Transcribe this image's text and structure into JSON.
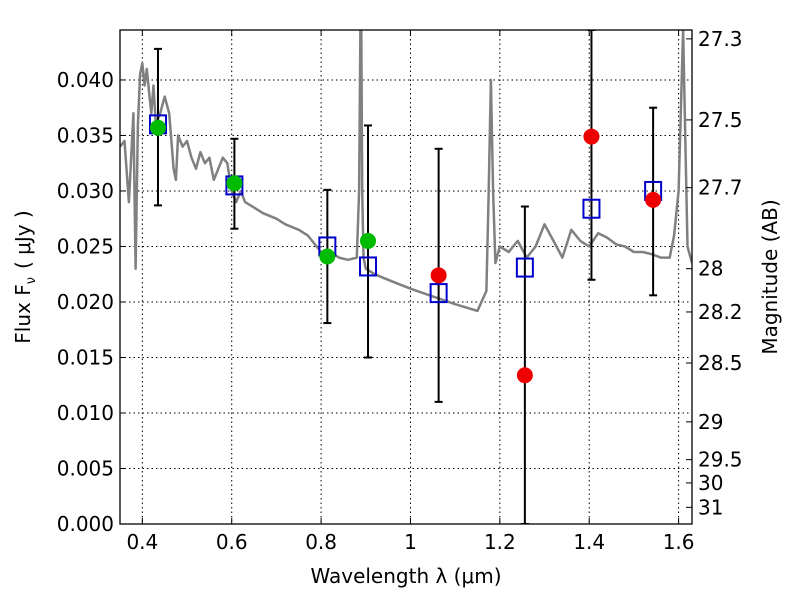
{
  "chart_data": {
    "type": "scatter",
    "xlabel": "Wavelength  λ (μm)",
    "ylabel": "Flux  F",
    "ylabel_sub": "ν",
    "ylabel_unit": "( μJy )",
    "y2label": "Magnitude (AB)",
    "xlim": [
      0.35,
      1.63
    ],
    "ylim": [
      0.0,
      0.0445
    ],
    "grid": true,
    "x_ticks": [
      0.4,
      0.6,
      0.8,
      1.0,
      1.2,
      1.4,
      1.6
    ],
    "x_tick_labels": [
      "0.4",
      "0.6",
      "0.8",
      "1",
      "1.2",
      "1.4",
      "1.6"
    ],
    "y_ticks": [
      0.0,
      0.005,
      0.01,
      0.015,
      0.02,
      0.025,
      0.03,
      0.035,
      0.04
    ],
    "y_tick_labels": [
      "0.000",
      "0.005",
      "0.010",
      "0.015",
      "0.020",
      "0.025",
      "0.030",
      "0.035",
      "0.040"
    ],
    "y2_ticks": [
      {
        "label": "27.3",
        "flux": 0.0437
      },
      {
        "label": "27.5",
        "flux": 0.0364
      },
      {
        "label": "27.7",
        "flux": 0.0303
      },
      {
        "label": "28",
        "flux": 0.023
      },
      {
        "label": "28.2",
        "flux": 0.0191
      },
      {
        "label": "28.5",
        "flux": 0.0145
      },
      {
        "label": "29",
        "flux": 0.0092
      },
      {
        "label": "29.5",
        "flux": 0.0058
      },
      {
        "label": "30",
        "flux": 0.0037
      },
      {
        "label": "31",
        "flux": 0.0015
      }
    ],
    "series": [
      {
        "kind": "model_spectrum",
        "color": "#808080",
        "x": [
          0.35,
          0.36,
          0.37,
          0.38,
          0.385,
          0.39,
          0.395,
          0.4,
          0.405,
          0.41,
          0.415,
          0.42,
          0.425,
          0.43,
          0.44,
          0.45,
          0.46,
          0.47,
          0.475,
          0.48,
          0.49,
          0.5,
          0.51,
          0.52,
          0.53,
          0.54,
          0.55,
          0.56,
          0.57,
          0.58,
          0.59,
          0.6,
          0.61,
          0.62,
          0.63,
          0.65,
          0.67,
          0.7,
          0.72,
          0.75,
          0.77,
          0.8,
          0.82,
          0.84,
          0.86,
          0.88,
          0.885,
          0.888,
          0.89,
          0.892,
          0.895,
          0.9,
          0.92,
          0.95,
          1.0,
          1.05,
          1.1,
          1.15,
          1.17,
          1.175,
          1.18,
          1.185,
          1.19,
          1.2,
          1.22,
          1.24,
          1.26,
          1.28,
          1.3,
          1.32,
          1.34,
          1.36,
          1.38,
          1.4,
          1.42,
          1.44,
          1.46,
          1.48,
          1.5,
          1.52,
          1.54,
          1.56,
          1.58,
          1.59,
          1.6,
          1.61,
          1.62,
          1.63
        ],
        "y": [
          0.034,
          0.0345,
          0.029,
          0.037,
          0.023,
          0.036,
          0.0405,
          0.0415,
          0.0395,
          0.041,
          0.039,
          0.037,
          0.0395,
          0.036,
          0.037,
          0.0385,
          0.037,
          0.032,
          0.031,
          0.035,
          0.034,
          0.0345,
          0.033,
          0.032,
          0.0335,
          0.0325,
          0.033,
          0.031,
          0.032,
          0.033,
          0.0325,
          0.03,
          0.029,
          0.03,
          0.029,
          0.0285,
          0.028,
          0.0275,
          0.027,
          0.0265,
          0.026,
          0.0245,
          0.0245,
          0.024,
          0.0238,
          0.024,
          0.03,
          0.0445,
          0.0445,
          0.03,
          0.024,
          0.023,
          0.0225,
          0.022,
          0.0212,
          0.0205,
          0.0198,
          0.0192,
          0.021,
          0.03,
          0.04,
          0.03,
          0.0235,
          0.025,
          0.0245,
          0.0255,
          0.024,
          0.025,
          0.027,
          0.0255,
          0.024,
          0.0265,
          0.0255,
          0.025,
          0.0262,
          0.0258,
          0.0252,
          0.025,
          0.0245,
          0.0245,
          0.0243,
          0.024,
          0.024,
          0.026,
          0.03,
          0.0445,
          0.025,
          0.0235
        ]
      },
      {
        "kind": "model_photometry",
        "marker": "open-square",
        "color": "#0000cc",
        "points": [
          {
            "x": 0.435,
            "y": 0.036
          },
          {
            "x": 0.606,
            "y": 0.0305
          },
          {
            "x": 0.814,
            "y": 0.025
          },
          {
            "x": 0.905,
            "y": 0.0232
          },
          {
            "x": 1.063,
            "y": 0.0208
          },
          {
            "x": 1.256,
            "y": 0.0231
          },
          {
            "x": 1.405,
            "y": 0.0284
          },
          {
            "x": 1.543,
            "y": 0.03
          }
        ]
      },
      {
        "kind": "detections",
        "marker": "filled-circle",
        "color": "#00bb00",
        "points": [
          {
            "x": 0.435,
            "y": 0.0357,
            "err_lo": 0.0287,
            "err_hi": 0.0428
          },
          {
            "x": 0.606,
            "y": 0.0307,
            "err_lo": 0.0266,
            "err_hi": 0.0347
          },
          {
            "x": 0.814,
            "y": 0.0241,
            "err_lo": 0.0181,
            "err_hi": 0.0301
          },
          {
            "x": 0.905,
            "y": 0.0255,
            "err_lo": 0.015,
            "err_hi": 0.0359
          }
        ]
      },
      {
        "kind": "non_detections",
        "marker": "filled-circle",
        "color": "#ee0000",
        "points": [
          {
            "x": 1.063,
            "y": 0.0224,
            "err_lo": 0.011,
            "err_hi": 0.0338
          },
          {
            "x": 1.256,
            "y": 0.0134,
            "err_lo": 0.0,
            "err_hi": 0.0286
          },
          {
            "x": 1.405,
            "y": 0.0349,
            "err_lo": 0.022,
            "err_hi": 0.0445
          },
          {
            "x": 1.543,
            "y": 0.0292,
            "err_lo": 0.0206,
            "err_hi": 0.0375
          }
        ]
      }
    ]
  }
}
